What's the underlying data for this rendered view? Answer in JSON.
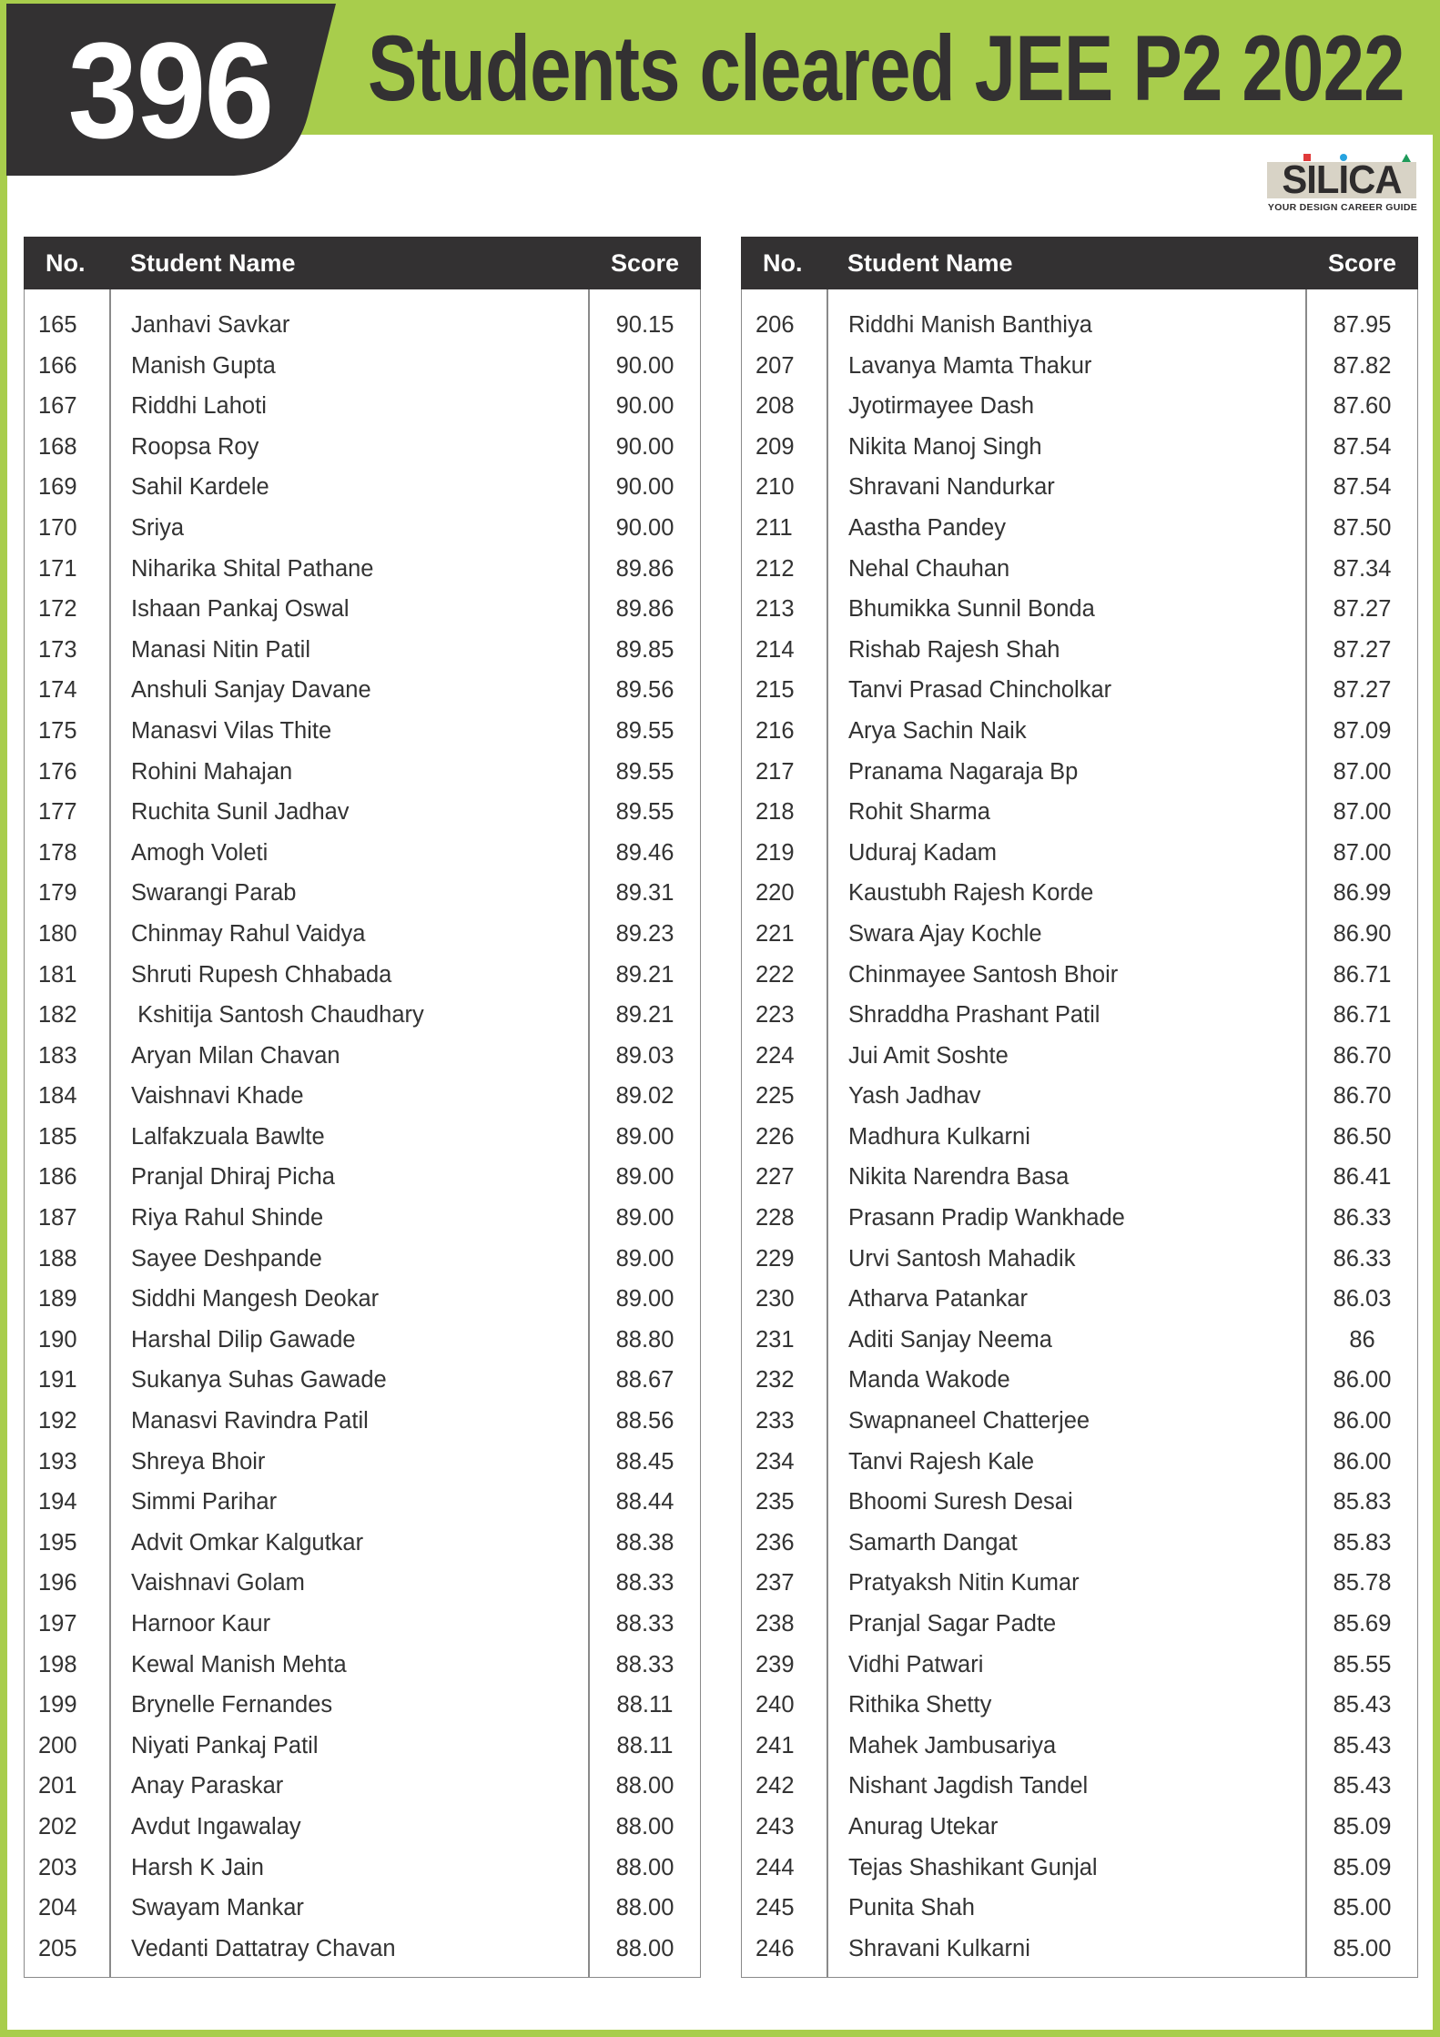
{
  "header": {
    "count": "396",
    "title": "Students cleared JEE P2 2022"
  },
  "logo": {
    "name": "SILICA",
    "tagline": "YOUR DESIGN CAREER GUIDE"
  },
  "colors": {
    "brand_green": "#a8cd4c",
    "dark": "#333132",
    "logo_red": "#e03a3a",
    "logo_blue": "#27a3e0",
    "logo_green": "#1e9a5a"
  },
  "columns": {
    "no": "No.",
    "name": "Student Name",
    "score": "Score"
  },
  "tables": [
    {
      "rows": [
        [
          "165",
          "Janhavi Savkar",
          "90.15"
        ],
        [
          "166",
          "Manish Gupta",
          "90.00"
        ],
        [
          "167",
          "Riddhi Lahoti",
          "90.00"
        ],
        [
          "168",
          "Roopsa Roy",
          "90.00"
        ],
        [
          "169",
          "Sahil Kardele",
          "90.00"
        ],
        [
          "170",
          "Sriya",
          "90.00"
        ],
        [
          "171",
          "Niharika Shital Pathane",
          "89.86"
        ],
        [
          "172",
          "Ishaan Pankaj Oswal",
          "89.86"
        ],
        [
          "173",
          "Manasi Nitin Patil",
          "89.85"
        ],
        [
          "174",
          "Anshuli Sanjay Davane",
          "89.56"
        ],
        [
          "175",
          "Manasvi Vilas Thite",
          "89.55"
        ],
        [
          "176",
          "Rohini Mahajan",
          "89.55"
        ],
        [
          "177",
          "Ruchita Sunil Jadhav",
          "89.55"
        ],
        [
          "178",
          "Amogh Voleti",
          "89.46"
        ],
        [
          "179",
          "Swarangi Parab",
          "89.31"
        ],
        [
          "180",
          "Chinmay Rahul Vaidya",
          "89.23"
        ],
        [
          "181",
          "Shruti Rupesh Chhabada",
          "89.21"
        ],
        [
          "182",
          " Kshitija Santosh Chaudhary",
          "89.21"
        ],
        [
          "183",
          "Aryan Milan Chavan",
          "89.03"
        ],
        [
          "184",
          "Vaishnavi Khade",
          "89.02"
        ],
        [
          "185",
          "Lalfakzuala Bawlte",
          "89.00"
        ],
        [
          "186",
          "Pranjal Dhiraj Picha",
          "89.00"
        ],
        [
          "187",
          "Riya Rahul Shinde",
          "89.00"
        ],
        [
          "188",
          "Sayee Deshpande",
          "89.00"
        ],
        [
          "189",
          "Siddhi Mangesh Deokar",
          "89.00"
        ],
        [
          "190",
          "Harshal Dilip Gawade",
          "88.80"
        ],
        [
          "191",
          "Sukanya Suhas Gawade",
          "88.67"
        ],
        [
          "192",
          "Manasvi Ravindra Patil",
          "88.56"
        ],
        [
          "193",
          "Shreya Bhoir",
          "88.45"
        ],
        [
          "194",
          "Simmi Parihar",
          "88.44"
        ],
        [
          "195",
          "Advit Omkar Kalgutkar",
          "88.38"
        ],
        [
          "196",
          "Vaishnavi Golam",
          "88.33"
        ],
        [
          "197",
          "Harnoor Kaur",
          "88.33"
        ],
        [
          "198",
          "Kewal Manish Mehta",
          "88.33"
        ],
        [
          "199",
          "Brynelle Fernandes",
          "88.11"
        ],
        [
          "200",
          "Niyati Pankaj Patil",
          "88.11"
        ],
        [
          "201",
          "Anay Paraskar",
          "88.00"
        ],
        [
          "202",
          "Avdut Ingawalay",
          "88.00"
        ],
        [
          "203",
          "Harsh K Jain",
          "88.00"
        ],
        [
          "204",
          "Swayam Mankar",
          "88.00"
        ],
        [
          "205",
          "Vedanti Dattatray Chavan",
          "88.00"
        ]
      ]
    },
    {
      "rows": [
        [
          "206",
          "Riddhi Manish Banthiya",
          "87.95"
        ],
        [
          "207",
          "Lavanya Mamta Thakur",
          "87.82"
        ],
        [
          "208",
          "Jyotirmayee Dash",
          "87.60"
        ],
        [
          "209",
          "Nikita Manoj Singh",
          "87.54"
        ],
        [
          "210",
          "Shravani Nandurkar",
          "87.54"
        ],
        [
          "211",
          "Aastha Pandey",
          "87.50"
        ],
        [
          "212",
          "Nehal Chauhan",
          "87.34"
        ],
        [
          "213",
          "Bhumikka Sunnil Bonda",
          "87.27"
        ],
        [
          "214",
          "Rishab Rajesh Shah",
          "87.27"
        ],
        [
          "215",
          "Tanvi Prasad Chincholkar",
          "87.27"
        ],
        [
          "216",
          "Arya Sachin Naik",
          "87.09"
        ],
        [
          "217",
          "Pranama Nagaraja Bp",
          "87.00"
        ],
        [
          "218",
          "Rohit Sharma",
          "87.00"
        ],
        [
          "219",
          "Uduraj Kadam",
          "87.00"
        ],
        [
          "220",
          "Kaustubh Rajesh Korde",
          "86.99"
        ],
        [
          "221",
          "Swara Ajay Kochle",
          "86.90"
        ],
        [
          "222",
          "Chinmayee Santosh Bhoir",
          "86.71"
        ],
        [
          "223",
          "Shraddha Prashant Patil",
          "86.71"
        ],
        [
          "224",
          "Jui Amit Soshte",
          "86.70"
        ],
        [
          "225",
          "Yash Jadhav",
          "86.70"
        ],
        [
          "226",
          "Madhura Kulkarni",
          "86.50"
        ],
        [
          "227",
          "Nikita Narendra Basa",
          "86.41"
        ],
        [
          "228",
          "Prasann Pradip Wankhade",
          "86.33"
        ],
        [
          "229",
          "Urvi Santosh Mahadik",
          "86.33"
        ],
        [
          "230",
          "Atharva Patankar",
          "86.03"
        ],
        [
          "231",
          "Aditi Sanjay Neema",
          "86"
        ],
        [
          "232",
          "Manda Wakode",
          "86.00"
        ],
        [
          "233",
          "Swapnaneel Chatterjee",
          "86.00"
        ],
        [
          "234",
          "Tanvi Rajesh Kale",
          "86.00"
        ],
        [
          "235",
          "Bhoomi Suresh Desai",
          "85.83"
        ],
        [
          "236",
          "Samarth Dangat",
          "85.83"
        ],
        [
          "237",
          "Pratyaksh Nitin Kumar",
          "85.78"
        ],
        [
          "238",
          "Pranjal Sagar Padte",
          "85.69"
        ],
        [
          "239",
          "Vidhi Patwari",
          "85.55"
        ],
        [
          "240",
          "Rithika Shetty",
          "85.43"
        ],
        [
          "241",
          "Mahek Jambusariya",
          "85.43"
        ],
        [
          "242",
          "Nishant Jagdish Tandel",
          "85.43"
        ],
        [
          "243",
          "Anurag Utekar",
          "85.09"
        ],
        [
          "244",
          "Tejas Shashikant Gunjal",
          "85.09"
        ],
        [
          "245",
          "Punita Shah",
          "85.00"
        ],
        [
          "246",
          "Shravani Kulkarni",
          "85.00"
        ]
      ]
    }
  ]
}
